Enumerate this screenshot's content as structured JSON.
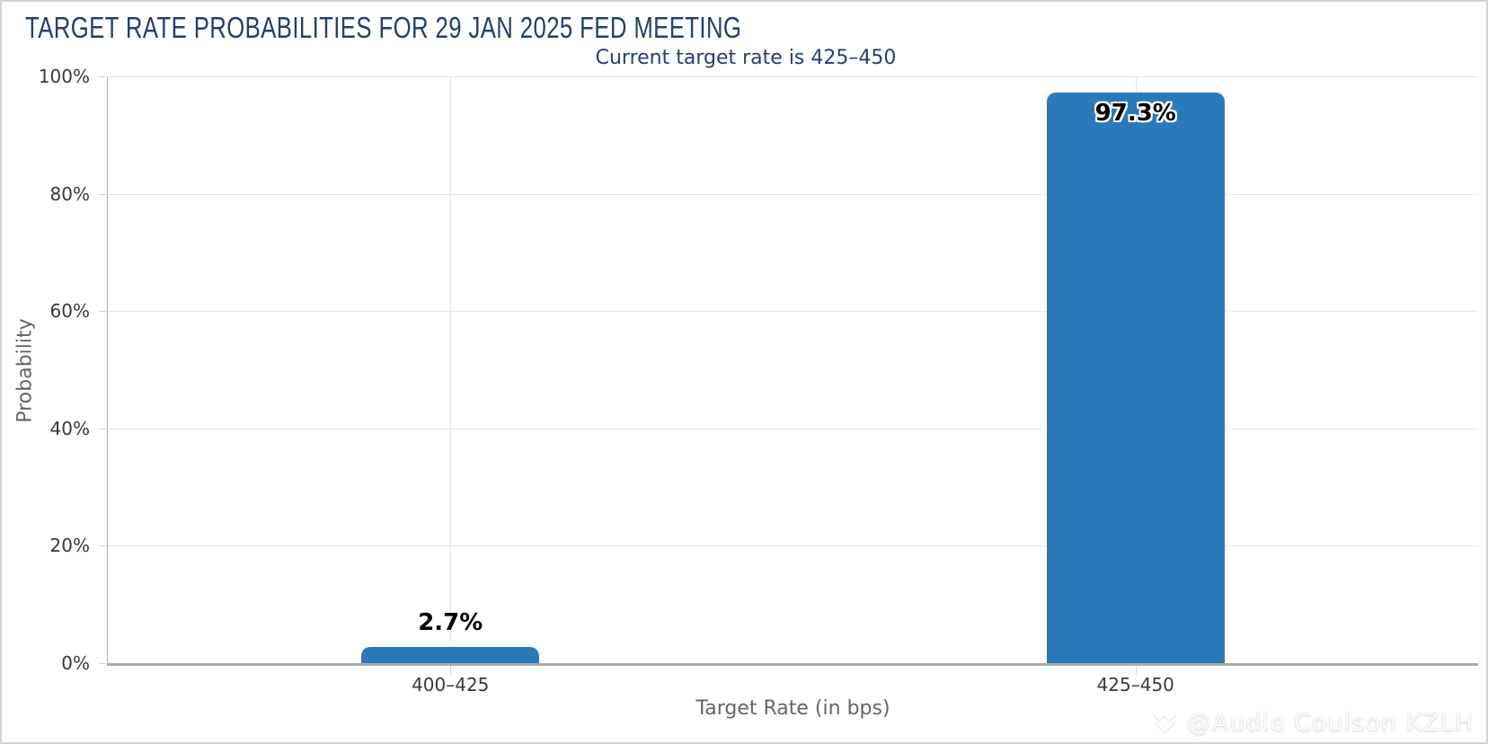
{
  "chart_data": {
    "type": "bar",
    "title": "TARGET RATE PROBABILITIES FOR 29 JAN 2025 FED MEETING",
    "subtitle": "Current target rate is 425–450",
    "categories": [
      "400–425",
      "425–450"
    ],
    "values": [
      2.7,
      97.3
    ],
    "value_labels": [
      "2.7%",
      "97.3%"
    ],
    "xlabel": "Target Rate (in bps)",
    "ylabel": "Probability",
    "yticks": [
      "0%",
      "20%",
      "40%",
      "60%",
      "80%",
      "100%"
    ],
    "ylim": [
      0,
      100
    ],
    "grid": true,
    "legend": "none",
    "bar_color": "#2a7ab9",
    "title_color": "#24406e",
    "tick_label_color": "#3a3a3a",
    "axis_title_color": "#63666b"
  },
  "watermark": {
    "icon": "chevron-diamond-icon",
    "text": "@Audie Coulson KZLH"
  }
}
